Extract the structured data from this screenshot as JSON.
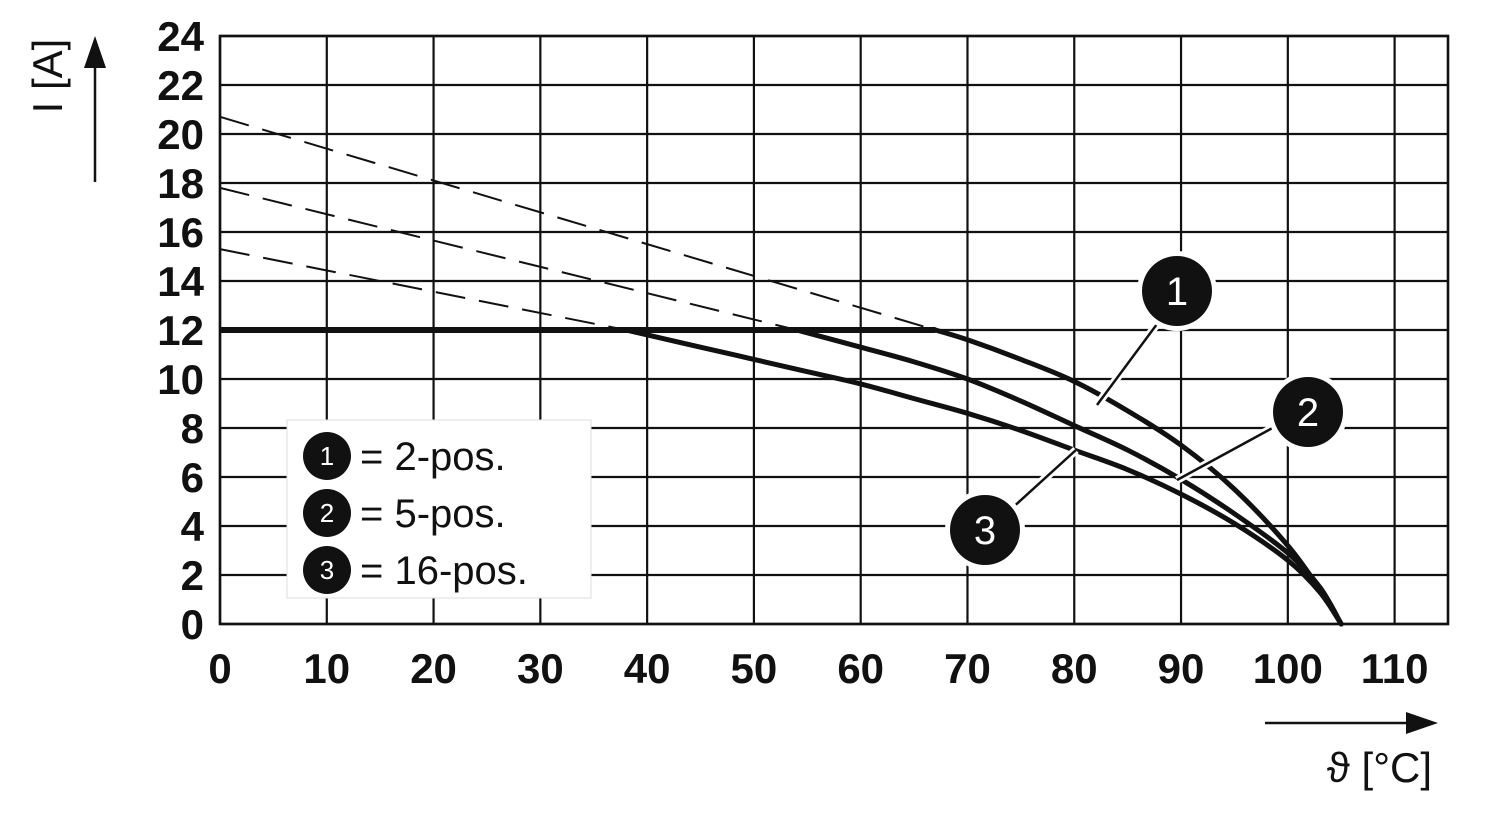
{
  "chart_data": {
    "type": "line",
    "ylabel": "I [A]",
    "xlabel": "ϑ [°C]",
    "xlim": [
      0,
      115
    ],
    "ylim": [
      0,
      24
    ],
    "grid": true,
    "x_ticks": [
      "0",
      "10",
      "20",
      "30",
      "40",
      "50",
      "60",
      "70",
      "80",
      "90",
      "100",
      "110"
    ],
    "y_ticks": [
      "0",
      "2",
      "4",
      "6",
      "8",
      "10",
      "12",
      "14",
      "16",
      "18",
      "20",
      "22",
      "24"
    ],
    "limit_line": {
      "value": 12
    },
    "legend": {
      "placement": "lower-left",
      "entries": [
        {
          "badge": "1",
          "label": "= 2-pos."
        },
        {
          "badge": "2",
          "label": "= 5-pos."
        },
        {
          "badge": "3",
          "label": "= 16-pos."
        }
      ]
    },
    "series": [
      {
        "badge": "1",
        "dashed": {
          "x": [
            0,
            67
          ],
          "y": [
            20.7,
            12
          ]
        },
        "solid": {
          "x": [
            67,
            70,
            75,
            80,
            85,
            90,
            95,
            100,
            103,
            105
          ],
          "y": [
            12,
            11.6,
            10.8,
            9.9,
            8.7,
            7.3,
            5.5,
            3.2,
            1.4,
            0
          ]
        }
      },
      {
        "badge": "2",
        "dashed": {
          "x": [
            0,
            54
          ],
          "y": [
            17.8,
            12
          ]
        },
        "solid": {
          "x": [
            54,
            60,
            65,
            70,
            75,
            80,
            85,
            90,
            95,
            100,
            103,
            105
          ],
          "y": [
            12,
            11.3,
            10.7,
            10,
            9.1,
            8.1,
            7.1,
            5.9,
            4.5,
            2.9,
            1.5,
            0
          ]
        }
      },
      {
        "badge": "3",
        "dashed": {
          "x": [
            0,
            38
          ],
          "y": [
            15.3,
            12
          ]
        },
        "solid": {
          "x": [
            38,
            45,
            50,
            55,
            60,
            65,
            70,
            75,
            80,
            85,
            90,
            95,
            100,
            103,
            105
          ],
          "y": [
            12,
            11.3,
            10.8,
            10.3,
            9.8,
            9.2,
            8.6,
            7.9,
            7.1,
            6.3,
            5.3,
            4.1,
            2.6,
            1.3,
            0
          ]
        }
      }
    ]
  }
}
